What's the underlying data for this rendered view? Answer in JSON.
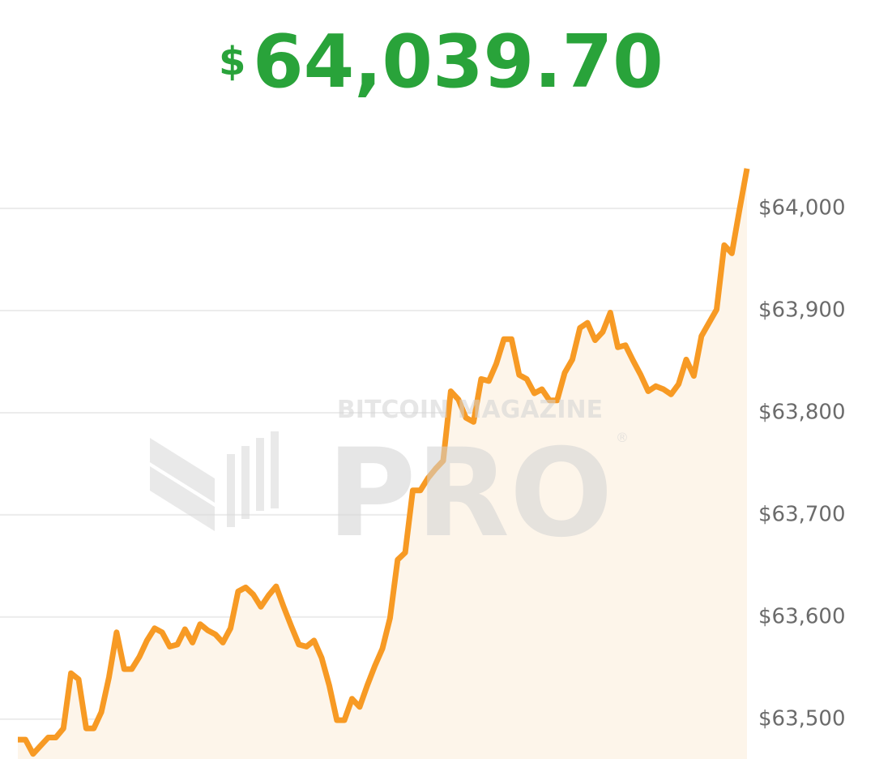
{
  "chart_data": {
    "type": "line",
    "title_currency": "$",
    "title": "64,039.70",
    "title_color": "#29a33a",
    "watermark": {
      "top": "BITCOIN MAGAZINE",
      "main": "PRO",
      "mark": "®"
    },
    "color": "#f79a24",
    "area_color": "#fdf5ea",
    "grid": true,
    "values": [
      63480,
      63480,
      63466,
      63474,
      63482,
      63482,
      63491,
      63545,
      63539,
      63491,
      63491,
      63507,
      63541,
      63585,
      63549,
      63549,
      63561,
      63577,
      63589,
      63585,
      63571,
      63573,
      63588,
      63575,
      63593,
      63587,
      63583,
      63575,
      63589,
      63625,
      63629,
      63622,
      63610,
      63621,
      63630,
      63610,
      63591,
      63573,
      63571,
      63577,
      63560,
      63533,
      63499,
      63499,
      63520,
      63512,
      63533,
      63552,
      63569,
      63599,
      63656,
      63663,
      63724,
      63724,
      63736,
      63745,
      63753,
      63821,
      63813,
      63795,
      63791,
      63833,
      63831,
      63848,
      63872,
      63872,
      63837,
      63833,
      63819,
      63823,
      63812,
      63812,
      63839,
      63852,
      63883,
      63888,
      63871,
      63879,
      63898,
      63864,
      63866,
      63851,
      63837,
      63821,
      63826,
      63823,
      63818,
      63828,
      63852,
      63836,
      63875,
      63888,
      63901,
      63964,
      63956,
      63998,
      64039
    ],
    "ylim": [
      63461,
      64204
    ],
    "yticks": [
      {
        "value": 63500,
        "label": "$63,500"
      },
      {
        "value": 63600,
        "label": "$63,600"
      },
      {
        "value": 63700,
        "label": "$63,700"
      },
      {
        "value": 63800,
        "label": "$63,800"
      },
      {
        "value": 63900,
        "label": "$63,900"
      },
      {
        "value": 64000,
        "label": "$64,000"
      }
    ]
  }
}
